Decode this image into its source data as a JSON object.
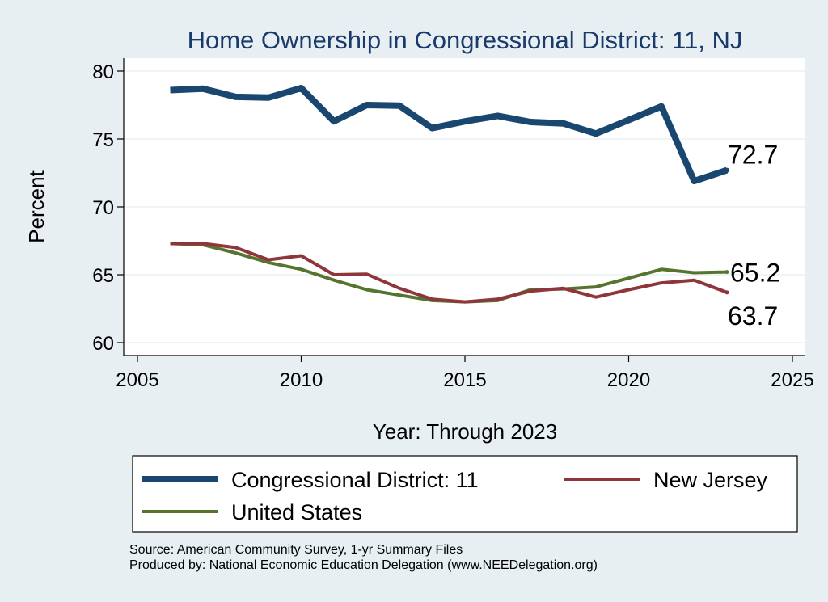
{
  "chart_data": {
    "type": "line",
    "title": "Home Ownership in Congressional District:  11, NJ",
    "xlabel": "Year: Through 2023",
    "ylabel": "Percent",
    "xlim": [
      2005,
      2025
    ],
    "ylim": [
      60,
      80
    ],
    "x_ticks": [
      "2005",
      "2010",
      "2015",
      "2020",
      "2025"
    ],
    "y_ticks": [
      "60",
      "65",
      "70",
      "75",
      "80"
    ],
    "grid": true,
    "legend_position": "bottom",
    "series": [
      {
        "name": "Congressional District:  11",
        "color": "#1a476f",
        "x": [
          2006,
          2007,
          2008,
          2009,
          2010,
          2011,
          2012,
          2013,
          2014,
          2015,
          2016,
          2017,
          2018,
          2019,
          2020,
          2021,
          2022,
          2023
        ],
        "y": [
          78.6,
          78.7,
          78.1,
          78.05,
          78.75,
          76.3,
          77.5,
          77.45,
          75.8,
          76.3,
          76.7,
          76.25,
          76.15,
          75.4,
          76.4,
          77.4,
          71.9,
          72.7
        ],
        "end_label": "72.7"
      },
      {
        "name": "New Jersey",
        "color": "#90353b",
        "x": [
          2006,
          2007,
          2008,
          2009,
          2010,
          2011,
          2012,
          2013,
          2014,
          2015,
          2016,
          2017,
          2018,
          2019,
          2020,
          2021,
          2022,
          2023
        ],
        "y": [
          67.3,
          67.3,
          67.0,
          66.1,
          66.4,
          65.0,
          65.05,
          64.0,
          63.2,
          63.0,
          63.2,
          63.8,
          64.0,
          63.35,
          63.9,
          64.4,
          64.6,
          63.7
        ],
        "end_label": "63.7"
      },
      {
        "name": "United States",
        "color": "#55752f",
        "x": [
          2006,
          2007,
          2008,
          2009,
          2010,
          2011,
          2012,
          2013,
          2014,
          2015,
          2016,
          2017,
          2018,
          2019,
          2020,
          2021,
          2022,
          2023
        ],
        "y": [
          67.3,
          67.2,
          66.6,
          65.9,
          65.4,
          64.6,
          63.9,
          63.5,
          63.1,
          63.0,
          63.1,
          63.9,
          63.95,
          64.1,
          64.75,
          65.4,
          65.15,
          65.2
        ],
        "end_label": "65.2"
      }
    ]
  },
  "footer": {
    "source": "Source: American Community Survey, 1-yr Summary Files",
    "produced": "Produced by: National Economic Education Delegation (www.NEEDelegation.org)"
  }
}
